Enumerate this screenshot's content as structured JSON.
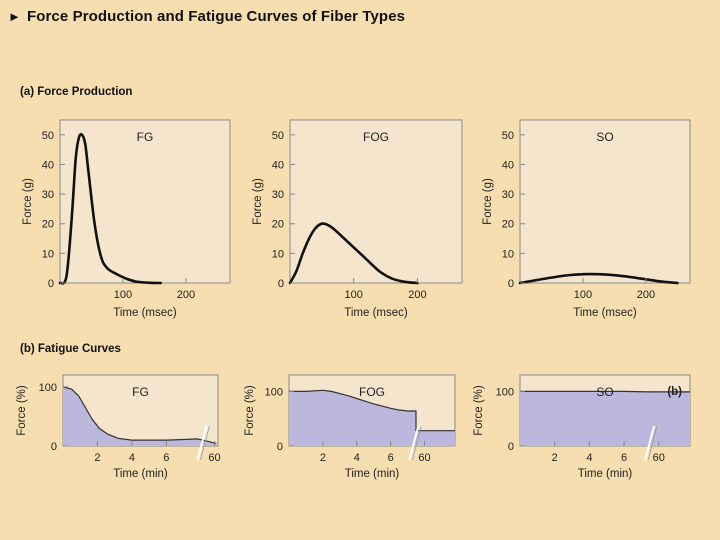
{
  "page": {
    "title": "Force Production and Fatigue Curves of Fiber Types",
    "title_marker": "►"
  },
  "colors": {
    "background": "#f6deb0",
    "plot_bg": "#f4e5cc",
    "fatigue_fill": "#bcb7dc",
    "axis": "#8a8a8a",
    "curve": "#111111"
  },
  "sections": {
    "force_production": "(a) Force Production",
    "fatigue_curves": "(b) Fatigue Curves"
  },
  "chart_data": [
    {
      "id": "force-fg",
      "type": "line",
      "panel_label": "FG",
      "xlabel": "Time (msec)",
      "ylabel": "Force (g)",
      "xlim": [
        0,
        270
      ],
      "ylim": [
        0,
        55
      ],
      "xticks": [
        100,
        200
      ],
      "yticks": [
        0,
        10,
        20,
        30,
        40,
        50
      ],
      "x": [
        0,
        10,
        18,
        25,
        30,
        35,
        40,
        45,
        55,
        65,
        75,
        90,
        105,
        120,
        140,
        160
      ],
      "y": [
        0,
        2,
        20,
        42,
        49,
        50,
        47,
        38,
        20,
        9,
        5,
        3,
        1.5,
        0.5,
        0.1,
        0
      ]
    },
    {
      "id": "force-fog",
      "type": "line",
      "panel_label": "FOG",
      "xlabel": "Time (msec)",
      "ylabel": "Force (g)",
      "xlim": [
        0,
        270
      ],
      "ylim": [
        0,
        55
      ],
      "xticks": [
        100,
        200
      ],
      "yticks": [
        0,
        10,
        20,
        30,
        40,
        50
      ],
      "x": [
        0,
        10,
        20,
        30,
        40,
        50,
        60,
        70,
        80,
        100,
        120,
        140,
        160,
        180,
        200
      ],
      "y": [
        0,
        4,
        10,
        15,
        18.5,
        20,
        19.5,
        18,
        16,
        12,
        8,
        4,
        1.5,
        0.4,
        0
      ]
    },
    {
      "id": "force-so",
      "type": "line",
      "panel_label": "SO",
      "xlabel": "Time (msec)",
      "ylabel": "Force (g)",
      "xlim": [
        0,
        270
      ],
      "ylim": [
        0,
        55
      ],
      "xticks": [
        100,
        200
      ],
      "yticks": [
        0,
        10,
        20,
        30,
        40,
        50
      ],
      "x": [
        0,
        40,
        80,
        110,
        140,
        180,
        220,
        250
      ],
      "y": [
        0,
        1.5,
        2.7,
        3,
        2.8,
        1.9,
        0.6,
        0
      ]
    },
    {
      "id": "fatigue-fg",
      "type": "area",
      "panel_label": "FG",
      "xlabel": "Time (min)",
      "ylabel": "Force (%)",
      "xlim": [
        0,
        9
      ],
      "ylim": [
        0,
        120
      ],
      "xticks": [
        "2",
        "4",
        "6",
        "60"
      ],
      "xtick_pos": [
        2,
        4,
        6,
        8.8
      ],
      "yticks": [
        0,
        100
      ],
      "x": [
        0,
        0.5,
        0.9,
        1.3,
        1.7,
        2.1,
        2.6,
        3.2,
        4,
        5,
        6,
        7,
        7.8,
        8.4,
        8.9
      ],
      "y": [
        100,
        96,
        85,
        65,
        45,
        30,
        20,
        13,
        10,
        10,
        10,
        11,
        12,
        8,
        4
      ],
      "axis_break_x": 8.1
    },
    {
      "id": "fatigue-fog",
      "type": "area",
      "panel_label": "FOG",
      "xlabel": "Time (min)",
      "ylabel": "Force (%)",
      "xlim": [
        0,
        9.8
      ],
      "ylim": [
        0,
        130
      ],
      "xticks": [
        "2",
        "4",
        "6",
        "60"
      ],
      "xtick_pos": [
        2,
        4,
        6,
        8
      ],
      "yticks": [
        0,
        100
      ],
      "x": [
        0,
        1,
        2,
        2.5,
        3,
        3.5,
        4,
        4.5,
        5,
        5.5,
        6,
        6.5,
        7,
        7.5,
        7.5,
        8,
        9,
        9.8
      ],
      "y": [
        100,
        100,
        102,
        100,
        96,
        92,
        87,
        82,
        77,
        73,
        69,
        66,
        64,
        64,
        28,
        28,
        28,
        28
      ],
      "axis_break_x": 7.4
    },
    {
      "id": "fatigue-so",
      "type": "area",
      "panel_label": "SO",
      "badge": "(b)",
      "xlabel": "Time (min)",
      "ylabel": "Force (%)",
      "xlim": [
        0,
        9.8
      ],
      "ylim": [
        0,
        130
      ],
      "xticks": [
        "2",
        "4",
        "6",
        "60"
      ],
      "xtick_pos": [
        2,
        4,
        6,
        8
      ],
      "yticks": [
        0,
        100
      ],
      "x": [
        0,
        2,
        4,
        6,
        7.5,
        8.5,
        9.8
      ],
      "y": [
        100,
        100,
        100,
        100,
        99,
        99,
        99
      ],
      "axis_break_x": 7.5
    }
  ]
}
